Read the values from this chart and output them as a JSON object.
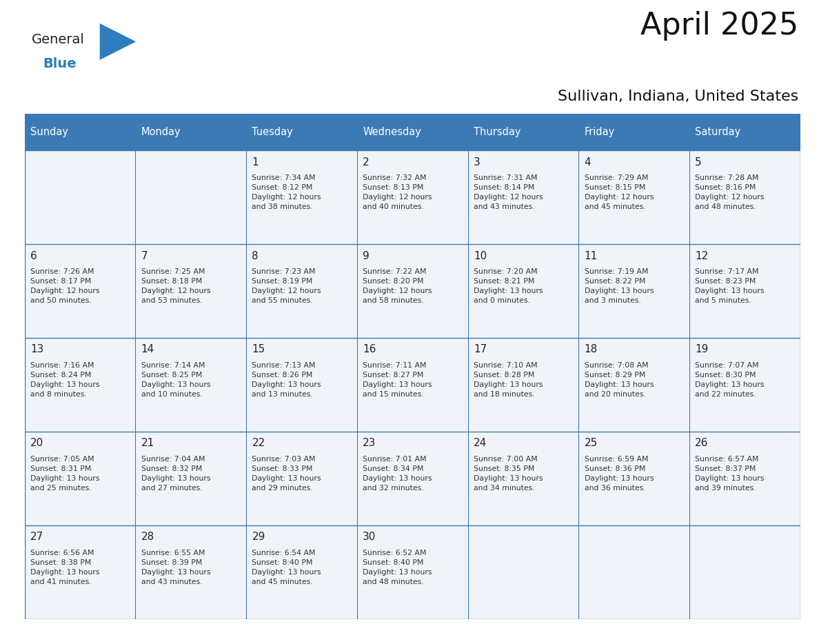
{
  "title": "April 2025",
  "subtitle": "Sullivan, Indiana, United States",
  "header_bg_color": "#3c7ab5",
  "header_text_color": "#ffffff",
  "cell_bg_color": "#f0f4f8",
  "border_color": "#3c7ab5",
  "text_color": "#333333",
  "day_num_color": "#222222",
  "days_of_week": [
    "Sunday",
    "Monday",
    "Tuesday",
    "Wednesday",
    "Thursday",
    "Friday",
    "Saturday"
  ],
  "weeks": [
    [
      {
        "day": "",
        "info": ""
      },
      {
        "day": "",
        "info": ""
      },
      {
        "day": "1",
        "info": "Sunrise: 7:34 AM\nSunset: 8:12 PM\nDaylight: 12 hours\nand 38 minutes."
      },
      {
        "day": "2",
        "info": "Sunrise: 7:32 AM\nSunset: 8:13 PM\nDaylight: 12 hours\nand 40 minutes."
      },
      {
        "day": "3",
        "info": "Sunrise: 7:31 AM\nSunset: 8:14 PM\nDaylight: 12 hours\nand 43 minutes."
      },
      {
        "day": "4",
        "info": "Sunrise: 7:29 AM\nSunset: 8:15 PM\nDaylight: 12 hours\nand 45 minutes."
      },
      {
        "day": "5",
        "info": "Sunrise: 7:28 AM\nSunset: 8:16 PM\nDaylight: 12 hours\nand 48 minutes."
      }
    ],
    [
      {
        "day": "6",
        "info": "Sunrise: 7:26 AM\nSunset: 8:17 PM\nDaylight: 12 hours\nand 50 minutes."
      },
      {
        "day": "7",
        "info": "Sunrise: 7:25 AM\nSunset: 8:18 PM\nDaylight: 12 hours\nand 53 minutes."
      },
      {
        "day": "8",
        "info": "Sunrise: 7:23 AM\nSunset: 8:19 PM\nDaylight: 12 hours\nand 55 minutes."
      },
      {
        "day": "9",
        "info": "Sunrise: 7:22 AM\nSunset: 8:20 PM\nDaylight: 12 hours\nand 58 minutes."
      },
      {
        "day": "10",
        "info": "Sunrise: 7:20 AM\nSunset: 8:21 PM\nDaylight: 13 hours\nand 0 minutes."
      },
      {
        "day": "11",
        "info": "Sunrise: 7:19 AM\nSunset: 8:22 PM\nDaylight: 13 hours\nand 3 minutes."
      },
      {
        "day": "12",
        "info": "Sunrise: 7:17 AM\nSunset: 8:23 PM\nDaylight: 13 hours\nand 5 minutes."
      }
    ],
    [
      {
        "day": "13",
        "info": "Sunrise: 7:16 AM\nSunset: 8:24 PM\nDaylight: 13 hours\nand 8 minutes."
      },
      {
        "day": "14",
        "info": "Sunrise: 7:14 AM\nSunset: 8:25 PM\nDaylight: 13 hours\nand 10 minutes."
      },
      {
        "day": "15",
        "info": "Sunrise: 7:13 AM\nSunset: 8:26 PM\nDaylight: 13 hours\nand 13 minutes."
      },
      {
        "day": "16",
        "info": "Sunrise: 7:11 AM\nSunset: 8:27 PM\nDaylight: 13 hours\nand 15 minutes."
      },
      {
        "day": "17",
        "info": "Sunrise: 7:10 AM\nSunset: 8:28 PM\nDaylight: 13 hours\nand 18 minutes."
      },
      {
        "day": "18",
        "info": "Sunrise: 7:08 AM\nSunset: 8:29 PM\nDaylight: 13 hours\nand 20 minutes."
      },
      {
        "day": "19",
        "info": "Sunrise: 7:07 AM\nSunset: 8:30 PM\nDaylight: 13 hours\nand 22 minutes."
      }
    ],
    [
      {
        "day": "20",
        "info": "Sunrise: 7:05 AM\nSunset: 8:31 PM\nDaylight: 13 hours\nand 25 minutes."
      },
      {
        "day": "21",
        "info": "Sunrise: 7:04 AM\nSunset: 8:32 PM\nDaylight: 13 hours\nand 27 minutes."
      },
      {
        "day": "22",
        "info": "Sunrise: 7:03 AM\nSunset: 8:33 PM\nDaylight: 13 hours\nand 29 minutes."
      },
      {
        "day": "23",
        "info": "Sunrise: 7:01 AM\nSunset: 8:34 PM\nDaylight: 13 hours\nand 32 minutes."
      },
      {
        "day": "24",
        "info": "Sunrise: 7:00 AM\nSunset: 8:35 PM\nDaylight: 13 hours\nand 34 minutes."
      },
      {
        "day": "25",
        "info": "Sunrise: 6:59 AM\nSunset: 8:36 PM\nDaylight: 13 hours\nand 36 minutes."
      },
      {
        "day": "26",
        "info": "Sunrise: 6:57 AM\nSunset: 8:37 PM\nDaylight: 13 hours\nand 39 minutes."
      }
    ],
    [
      {
        "day": "27",
        "info": "Sunrise: 6:56 AM\nSunset: 8:38 PM\nDaylight: 13 hours\nand 41 minutes."
      },
      {
        "day": "28",
        "info": "Sunrise: 6:55 AM\nSunset: 8:39 PM\nDaylight: 13 hours\nand 43 minutes."
      },
      {
        "day": "29",
        "info": "Sunrise: 6:54 AM\nSunset: 8:40 PM\nDaylight: 13 hours\nand 45 minutes."
      },
      {
        "day": "30",
        "info": "Sunrise: 6:52 AM\nSunset: 8:40 PM\nDaylight: 13 hours\nand 48 minutes."
      },
      {
        "day": "",
        "info": ""
      },
      {
        "day": "",
        "info": ""
      },
      {
        "day": "",
        "info": ""
      }
    ]
  ],
  "logo_color_general": "#222222",
  "logo_color_blue": "#2e7dbe",
  "logo_triangle_color": "#2e7dbe",
  "logo_text_general": "General",
  "logo_text_blue": "Blue",
  "fig_width": 11.88,
  "fig_height": 9.18,
  "dpi": 100
}
